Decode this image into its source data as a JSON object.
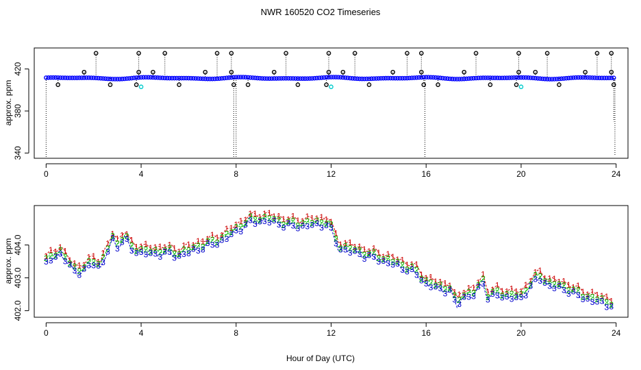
{
  "chart_data": {
    "title": "NWR  160520  CO2 Timeseries",
    "xlabel": "Hour of Day (UTC)",
    "panels": [
      {
        "name": "top",
        "type": "scatter",
        "ylabel": "approx. ppm",
        "xlim": [
          -0.5,
          24.5
        ],
        "ylim": [
          335,
          440
        ],
        "xticks": [
          0,
          4,
          8,
          12,
          16,
          20,
          24
        ],
        "yticks": [
          340,
          380,
          420
        ],
        "baseline": 411.3,
        "colors": {
          "main": "#0000ff",
          "outlier": "#000000",
          "special": "#00cccc",
          "drop": "#000000"
        },
        "hi_level": 435.0,
        "mid_level": 417.0,
        "low_level": 405.0,
        "hi_hours": [
          2.1,
          3.9,
          5.0,
          7.2,
          7.8,
          10.1,
          11.9,
          13.0,
          15.2,
          15.8,
          18.1,
          19.9,
          21.1,
          23.2,
          23.8
        ],
        "mid_hours": [
          1.6,
          3.9,
          4.5,
          6.7,
          7.8,
          9.6,
          11.9,
          12.5,
          14.6,
          15.8,
          17.6,
          19.9,
          20.6,
          22.7,
          23.8
        ],
        "low_hours": [
          0.5,
          2.7,
          3.8,
          5.6,
          7.9,
          8.5,
          10.6,
          11.8,
          13.6,
          15.9,
          16.5,
          18.7,
          19.8,
          21.6,
          23.9
        ],
        "special_hours": [
          4.0,
          12.0,
          20.0
        ],
        "special_level": 403.0,
        "drops": [
          {
            "hour": 0.0,
            "to": 336
          },
          {
            "hour": 7.9,
            "to": 336
          },
          {
            "hour": 8.0,
            "to": 336
          },
          {
            "hour": 15.95,
            "to": 336
          },
          {
            "hour": 23.9,
            "to": 370
          },
          {
            "hour": 23.95,
            "to": 337
          }
        ]
      },
      {
        "name": "bottom",
        "type": "line",
        "ylabel": "approx. ppm",
        "xlim": [
          -0.5,
          24.5
        ],
        "ylim": [
          401.8,
          405.2
        ],
        "xticks": [
          0,
          4,
          8,
          12,
          16,
          20,
          24
        ],
        "yticks": [
          402.0,
          403.0,
          404.0
        ],
        "ytick_labels": [
          "402.0",
          "403.0",
          "404.0"
        ],
        "series": [
          {
            "name": "1",
            "color": "#cc0000",
            "offset": 0.12
          },
          {
            "name": "2",
            "color": "#00bb00",
            "offset": 0.0
          },
          {
            "name": "3",
            "color": "#0000cc",
            "offset": -0.1
          }
        ],
        "knots_hour": [
          0.0,
          0.3,
          0.6,
          1.0,
          1.3,
          1.6,
          2.0,
          2.3,
          2.6,
          2.8,
          3.0,
          3.3,
          3.6,
          4.0,
          4.5,
          5.0,
          5.5,
          6.0,
          6.5,
          7.0,
          7.5,
          8.0,
          8.5,
          9.0,
          9.5,
          10.0,
          10.5,
          11.0,
          11.5,
          11.9,
          12.1,
          12.3,
          13.0,
          14.0,
          15.0,
          15.6,
          16.0,
          16.5,
          17.0,
          17.3,
          17.5,
          18.0,
          18.4,
          18.6,
          19.0,
          19.5,
          20.0,
          20.5,
          20.8,
          21.2,
          22.0,
          22.5,
          23.0,
          23.5,
          23.8
        ],
        "knots_ppm": [
          403.5,
          403.75,
          403.8,
          403.45,
          403.25,
          403.3,
          403.55,
          403.4,
          403.9,
          404.25,
          404.05,
          404.3,
          403.95,
          403.85,
          403.8,
          403.85,
          403.75,
          403.85,
          404.0,
          404.1,
          404.25,
          404.5,
          404.75,
          404.82,
          404.8,
          404.7,
          404.65,
          404.68,
          404.7,
          404.72,
          404.35,
          404.0,
          403.85,
          403.65,
          403.4,
          403.2,
          402.9,
          402.75,
          402.7,
          402.2,
          402.5,
          402.55,
          402.95,
          402.5,
          402.55,
          402.5,
          402.45,
          402.95,
          403.05,
          402.85,
          402.7,
          402.5,
          402.4,
          402.3,
          402.25
        ]
      }
    ]
  }
}
